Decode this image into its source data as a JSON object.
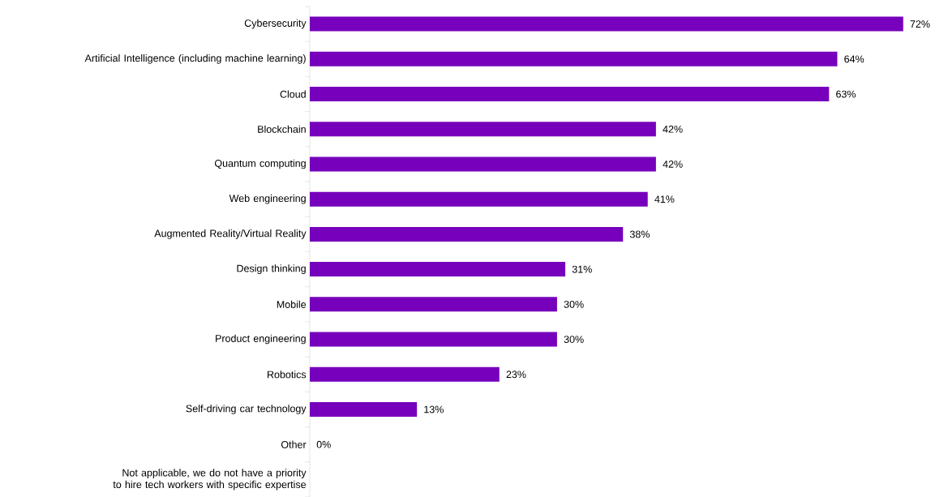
{
  "chart_data": {
    "type": "bar",
    "orientation": "horizontal",
    "color": "#7600bc",
    "categories": [
      "Cybersecurity",
      "Artificial Intelligence (including machine learning)",
      "Cloud",
      "Blockchain",
      "Quantum computing",
      "Web engineering",
      "Augmented Reality/Virtual Reality",
      "Design thinking",
      "Mobile",
      "Product engineering",
      "Robotics",
      "Self-driving car technology",
      "Other",
      "Not applicable, we do not have a priority to hire tech workers with specific expertise"
    ],
    "values": [
      72,
      64,
      63,
      42,
      42,
      41,
      38,
      31,
      30,
      30,
      23,
      13,
      0,
      null
    ],
    "value_labels": [
      "72%",
      "64%",
      "63%",
      "42%",
      "42%",
      "41%",
      "38%",
      "31%",
      "30%",
      "30%",
      "23%",
      "13%",
      "0%",
      null
    ]
  }
}
